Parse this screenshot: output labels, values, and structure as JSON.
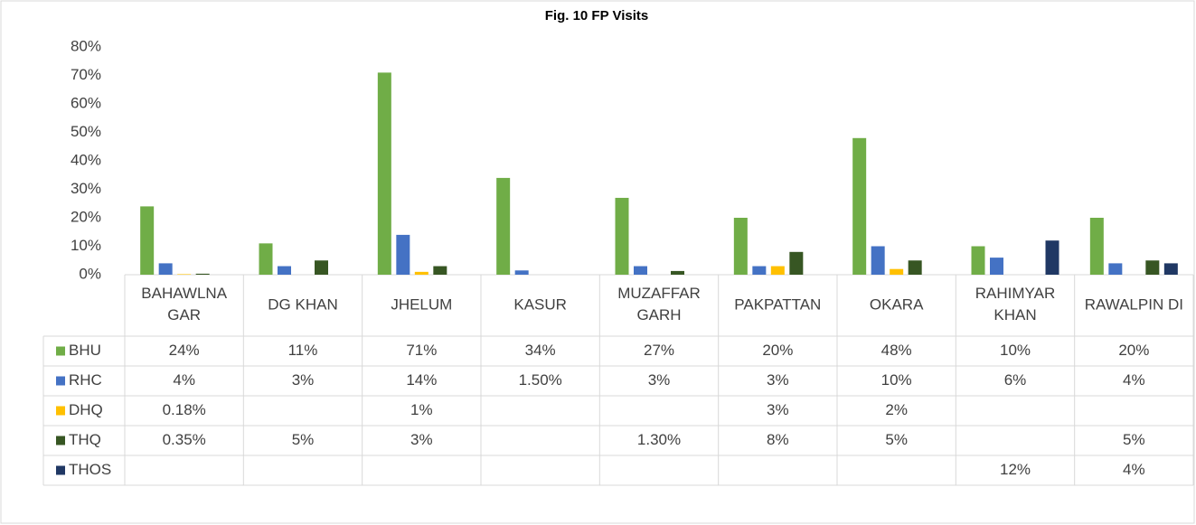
{
  "chart_data": {
    "type": "bar",
    "title": "Fig. 10 FP Visits",
    "categories": [
      "BAHAWLNA GAR",
      "DG KHAN",
      "JHELUM",
      "KASUR",
      "MUZAFFAR GARH",
      "PAKPATTAN",
      "OKARA",
      "RAHIMYAR KHAN",
      "RAWALPIN DI"
    ],
    "series": [
      {
        "name": "BHU",
        "color": "#70ad47",
        "values": [
          24,
          11,
          71,
          34,
          27,
          20,
          48,
          10,
          20
        ],
        "value_labels": [
          "24%",
          "11%",
          "71%",
          "34%",
          "27%",
          "20%",
          "48%",
          "10%",
          "20%"
        ]
      },
      {
        "name": "RHC",
        "color": "#4472c4",
        "values": [
          4,
          3,
          14,
          1.5,
          3,
          3,
          10,
          6,
          4
        ],
        "value_labels": [
          "4%",
          "3%",
          "14%",
          "1.50%",
          "3%",
          "3%",
          "10%",
          "6%",
          "4%"
        ]
      },
      {
        "name": "DHQ",
        "color": "#ffc000",
        "values": [
          0.18,
          null,
          1,
          null,
          null,
          3,
          2,
          null,
          null
        ],
        "value_labels": [
          "0.18%",
          null,
          "1%",
          null,
          null,
          "3%",
          "2%",
          null,
          null
        ]
      },
      {
        "name": "THQ",
        "color": "#375623",
        "values": [
          0.35,
          5,
          3,
          null,
          1.3,
          8,
          5,
          null,
          5
        ],
        "value_labels": [
          "0.35%",
          "5%",
          "3%",
          null,
          "1.30%",
          "8%",
          "5%",
          null,
          "5%"
        ]
      },
      {
        "name": "THOS",
        "color": "#203864",
        "values": [
          null,
          null,
          null,
          null,
          null,
          null,
          null,
          12,
          4
        ],
        "value_labels": [
          null,
          null,
          null,
          null,
          null,
          null,
          null,
          "12%",
          "4%"
        ]
      }
    ],
    "ylim": [
      0,
      80
    ],
    "yticks": [
      {
        "value": 0,
        "label": "0%"
      },
      {
        "value": 10,
        "label": "10%"
      },
      {
        "value": 20,
        "label": "20%"
      },
      {
        "value": 30,
        "label": "30%"
      },
      {
        "value": 40,
        "label": "40%"
      },
      {
        "value": 50,
        "label": "50%"
      },
      {
        "value": 60,
        "label": "60%"
      },
      {
        "value": 70,
        "label": "70%"
      },
      {
        "value": 80,
        "label": "80%"
      }
    ]
  }
}
